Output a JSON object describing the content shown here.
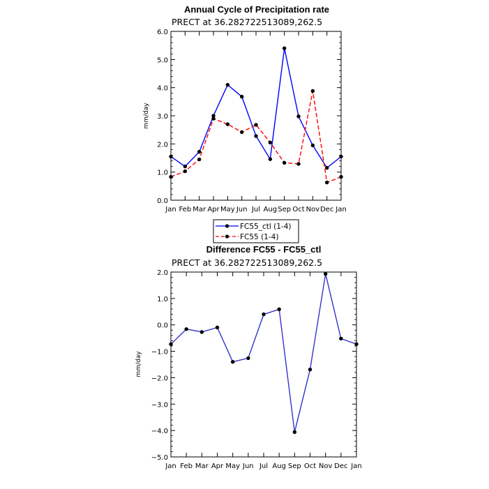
{
  "chart_data": [
    {
      "type": "line",
      "title": "Annual Cycle of Precipitation rate",
      "subtitle": "PRECT at 36.282722513089,262.5",
      "ylabel": "mm/day",
      "ylim": [
        0,
        6
      ],
      "yticks": [
        "0.0",
        "1.0",
        "2.0",
        "3.0",
        "4.0",
        "5.0",
        "6.0"
      ],
      "categories": [
        "Jan",
        "Feb",
        "Mar",
        "Apr",
        "May",
        "Jun",
        "Jul",
        "Aug",
        "Sep",
        "Oct",
        "Nov",
        "Dec",
        "Jan"
      ],
      "grid": false,
      "legend_placement": "bottom",
      "series": [
        {
          "name": "FC55_ctl (1-4)",
          "color": "#0000ff",
          "dash": "solid",
          "values": [
            1.55,
            1.2,
            1.72,
            3.0,
            4.1,
            3.68,
            2.28,
            1.46,
            5.4,
            2.98,
            1.95,
            1.15,
            1.55
          ]
        },
        {
          "name": "FC55 (1-4)",
          "color": "#ff0000",
          "dash": "dashed",
          "values": [
            0.83,
            1.03,
            1.45,
            2.9,
            2.7,
            2.42,
            2.68,
            2.05,
            1.33,
            1.29,
            3.88,
            0.63,
            0.83
          ]
        }
      ]
    },
    {
      "type": "line",
      "title": "Difference FC55 - FC55_ctl",
      "subtitle": "PRECT at 36.282722513089,262.5",
      "ylabel": "mm/day",
      "ylim": [
        -5,
        2
      ],
      "yticks": [
        "−5.0",
        "−4.0",
        "−3.0",
        "−2.0",
        "−1.0",
        "0.0",
        "1.0",
        "2.0"
      ],
      "categories": [
        "Jan",
        "Feb",
        "Mar",
        "Apr",
        "May",
        "Jun",
        "Jul",
        "Aug",
        "Sep",
        "Oct",
        "Nov",
        "Dec",
        "Jan"
      ],
      "grid": false,
      "series": [
        {
          "name": "",
          "color": "#3333cc",
          "dash": "solid",
          "values": [
            -0.73,
            -0.16,
            -0.27,
            -0.1,
            -1.4,
            -1.26,
            0.4,
            0.59,
            -4.06,
            -1.69,
            1.93,
            -0.52,
            -0.73
          ]
        }
      ]
    }
  ]
}
